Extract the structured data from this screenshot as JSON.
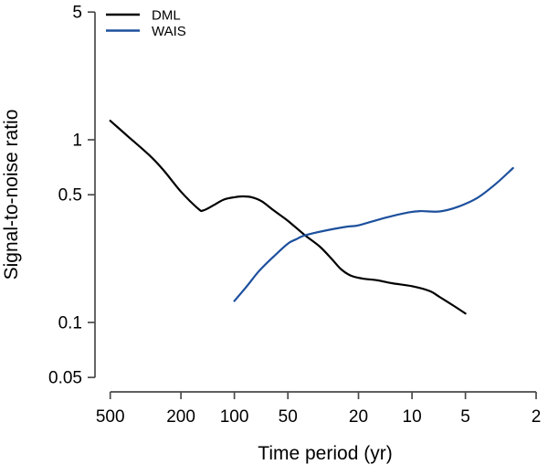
{
  "chart_data": {
    "type": "line",
    "title": "",
    "xlabel": "Time period (yr)",
    "ylabel": "Signal-to-noise ratio",
    "x_scale": "log",
    "y_scale": "log",
    "x_reversed": true,
    "xlim": [
      500,
      2
    ],
    "ylim": [
      0.05,
      5
    ],
    "x_ticks": [
      500,
      200,
      100,
      50,
      20,
      10,
      5,
      2
    ],
    "x_tick_labels": [
      "500",
      "200",
      "100",
      "50",
      "20",
      "10",
      "5",
      "2"
    ],
    "y_ticks": [
      5,
      1,
      0.5,
      0.1,
      0.05
    ],
    "y_tick_labels": [
      "5",
      "1",
      "0.5",
      "0.1",
      "0.05"
    ],
    "grid": "off",
    "legend": {
      "position": "top-left",
      "entries": [
        "DML",
        "WAIS"
      ]
    },
    "series": [
      {
        "name": "DML",
        "color": "#000000",
        "points": [
          [
            500,
            1.27
          ],
          [
            400,
            1.05
          ],
          [
            300,
            0.82
          ],
          [
            250,
            0.68
          ],
          [
            200,
            0.52
          ],
          [
            160,
            0.42
          ],
          [
            150,
            0.41
          ],
          [
            130,
            0.44
          ],
          [
            115,
            0.47
          ],
          [
            100,
            0.485
          ],
          [
            90,
            0.49
          ],
          [
            80,
            0.485
          ],
          [
            70,
            0.46
          ],
          [
            60,
            0.41
          ],
          [
            50,
            0.36
          ],
          [
            40,
            0.3
          ],
          [
            33,
            0.26
          ],
          [
            28,
            0.22
          ],
          [
            25,
            0.195
          ],
          [
            22,
            0.18
          ],
          [
            19,
            0.174
          ],
          [
            15.6,
            0.17
          ],
          [
            13,
            0.164
          ],
          [
            10,
            0.158
          ],
          [
            8,
            0.149
          ],
          [
            7,
            0.138
          ],
          [
            5.8,
            0.123
          ],
          [
            5,
            0.112
          ]
        ]
      },
      {
        "name": "WAIS",
        "color": "#1d509d",
        "points": [
          [
            100,
            0.131
          ],
          [
            85,
            0.158
          ],
          [
            73,
            0.19
          ],
          [
            60,
            0.23
          ],
          [
            50,
            0.27
          ],
          [
            45,
            0.285
          ],
          [
            40,
            0.3
          ],
          [
            30,
            0.32
          ],
          [
            23,
            0.335
          ],
          [
            20,
            0.34
          ],
          [
            14,
            0.375
          ],
          [
            10.5,
            0.4
          ],
          [
            9,
            0.407
          ],
          [
            7,
            0.405
          ],
          [
            5.5,
            0.43
          ],
          [
            4.3,
            0.48
          ],
          [
            3.4,
            0.57
          ],
          [
            2.7,
            0.7
          ]
        ]
      }
    ]
  }
}
